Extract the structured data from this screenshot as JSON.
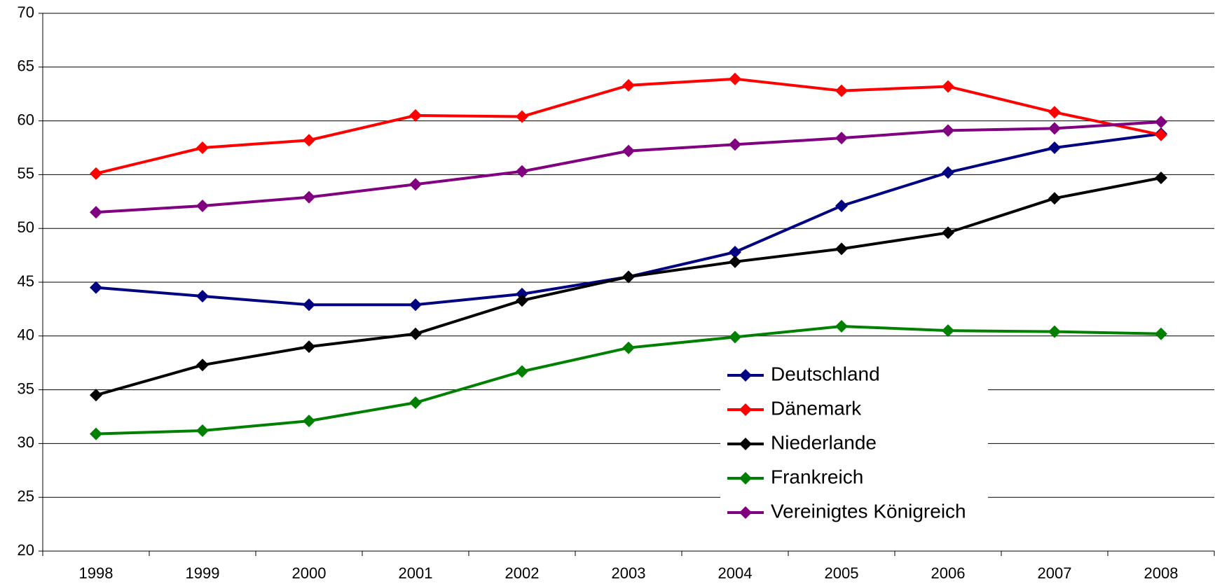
{
  "chart_data": {
    "type": "line",
    "categories": [
      "1998",
      "1999",
      "2000",
      "2001",
      "2002",
      "2003",
      "2004",
      "2005",
      "2006",
      "2007",
      "2008"
    ],
    "series": [
      {
        "name": "Deutschland",
        "color": "#000080",
        "values": [
          44.5,
          43.7,
          42.9,
          42.9,
          43.9,
          45.5,
          47.8,
          52.1,
          55.2,
          57.5,
          58.8
        ]
      },
      {
        "name": "Dänemark",
        "color": "#ff0000",
        "values": [
          55.1,
          57.5,
          58.2,
          60.5,
          60.4,
          63.3,
          63.9,
          62.8,
          63.2,
          60.8,
          58.7
        ]
      },
      {
        "name": "Niederlande",
        "color": "#000000",
        "values": [
          34.5,
          37.3,
          39.0,
          40.2,
          43.3,
          45.5,
          46.9,
          48.1,
          49.6,
          52.8,
          54.7
        ]
      },
      {
        "name": "Frankreich",
        "color": "#008000",
        "values": [
          30.9,
          31.2,
          32.1,
          33.8,
          36.7,
          38.9,
          39.9,
          40.9,
          40.5,
          40.4,
          40.2
        ]
      },
      {
        "name": "Vereinigtes Königreich",
        "color": "#800080",
        "values": [
          51.5,
          52.1,
          52.9,
          54.1,
          55.3,
          57.2,
          57.8,
          58.4,
          59.1,
          59.3,
          59.9
        ]
      }
    ],
    "ylim": [
      20,
      70
    ],
    "yticks": [
      20,
      25,
      30,
      35,
      40,
      45,
      50,
      55,
      60,
      65,
      70
    ],
    "grid": true,
    "legend": "lower right"
  }
}
